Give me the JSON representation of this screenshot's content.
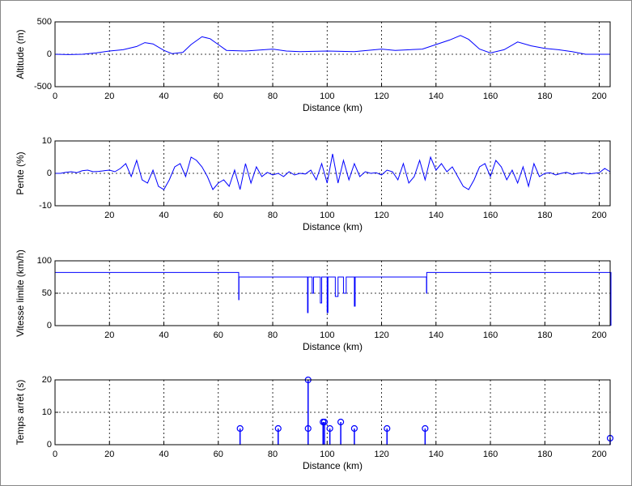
{
  "chart_data": [
    {
      "type": "line",
      "xlabel": "Distance (km)",
      "ylabel": "Altitude (m)",
      "xlim": [
        0,
        204
      ],
      "ylim": [
        -500,
        500
      ],
      "xticks": [
        0,
        20,
        40,
        60,
        80,
        100,
        120,
        140,
        160,
        180,
        200
      ],
      "yticks": [
        -500,
        0,
        500
      ],
      "grid": true,
      "x": [
        0,
        5,
        10,
        15,
        20,
        25,
        30,
        33,
        36,
        40,
        43,
        47,
        50,
        54,
        57,
        60,
        63,
        70,
        80,
        85,
        90,
        100,
        110,
        120,
        125,
        135,
        140,
        145,
        149,
        152,
        156,
        160,
        165,
        170,
        175,
        180,
        185,
        190,
        195,
        204
      ],
      "series": [
        {
          "color": "#0000ff",
          "values": [
            0,
            -5,
            0,
            20,
            50,
            70,
            120,
            180,
            160,
            60,
            10,
            30,
            150,
            270,
            240,
            150,
            60,
            50,
            80,
            50,
            40,
            50,
            40,
            80,
            60,
            80,
            150,
            220,
            290,
            230,
            80,
            20,
            70,
            190,
            130,
            90,
            70,
            40,
            0,
            0
          ]
        }
      ]
    },
    {
      "type": "line",
      "xlabel": "Distance (km)",
      "ylabel": "Pente (%)",
      "xlim": [
        0,
        204
      ],
      "ylim": [
        -10,
        10
      ],
      "xticks": [
        20,
        40,
        60,
        80,
        100,
        120,
        140,
        160,
        180,
        200
      ],
      "yticks": [
        -10,
        0,
        10
      ],
      "grid": true,
      "x": [
        0,
        2,
        4,
        6,
        8,
        10,
        12,
        14,
        16,
        18,
        20,
        22,
        24,
        26,
        28,
        30,
        32,
        34,
        36,
        38,
        40,
        42,
        44,
        46,
        48,
        50,
        52,
        54,
        56,
        58,
        60,
        62,
        64,
        66,
        68,
        70,
        72,
        74,
        76,
        78,
        80,
        82,
        84,
        86,
        88,
        90,
        92,
        94,
        96,
        98,
        100,
        102,
        104,
        106,
        108,
        110,
        112,
        114,
        116,
        118,
        120,
        122,
        124,
        126,
        128,
        130,
        132,
        134,
        136,
        138,
        140,
        142,
        144,
        146,
        148,
        150,
        152,
        154,
        156,
        158,
        160,
        162,
        164,
        166,
        168,
        170,
        172,
        174,
        176,
        178,
        180,
        182,
        184,
        186,
        188,
        190,
        192,
        194,
        196,
        198,
        200,
        202,
        204
      ],
      "series": [
        {
          "color": "#0000ff",
          "values": [
            0,
            0,
            0.3,
            0.5,
            0.2,
            0.8,
            1,
            0.5,
            0.6,
            0.8,
            1,
            0.5,
            1.5,
            3,
            -1,
            4,
            -2,
            -3,
            1,
            -4,
            -5,
            -2,
            2,
            3,
            -1,
            5,
            4,
            2,
            -1,
            -5,
            -3,
            -2,
            -4,
            1,
            -5,
            3,
            -3,
            2,
            -1,
            0.3,
            -0.5,
            0,
            -1,
            0.5,
            -0.5,
            0,
            -0.2,
            1,
            -2,
            3,
            -3,
            6,
            -3,
            4,
            -2,
            3,
            -1,
            0.5,
            0,
            0.2,
            -0.5,
            1,
            0.5,
            -2,
            3,
            -3,
            -1,
            4,
            -2,
            5,
            1,
            3,
            0.5,
            2,
            -1,
            -4,
            -5,
            -2,
            2,
            3,
            -1,
            4,
            2,
            -2,
            1,
            -3,
            2,
            -4,
            3,
            -1,
            0,
            0.2,
            -0.5,
            0,
            0.3,
            -0.3,
            0,
            0.2,
            -0.2,
            0,
            0.2,
            1.5,
            0.5
          ]
        }
      ]
    },
    {
      "type": "line",
      "xlabel": "Distance (km)",
      "ylabel": "Vitesse limite (km/h)",
      "xlim": [
        0,
        204
      ],
      "ylim": [
        0,
        100
      ],
      "xticks": [
        20,
        40,
        60,
        80,
        100,
        120,
        140,
        160,
        180,
        200
      ],
      "yticks": [
        0,
        50,
        100
      ],
      "grid": true,
      "x": [
        0,
        67.5,
        67.5,
        67.6,
        67.6,
        92.8,
        92.8,
        93,
        93,
        94.5,
        94.5,
        95,
        95,
        97.5,
        97.5,
        98,
        98,
        100,
        100,
        100.3,
        100.3,
        103,
        103,
        104,
        104,
        106,
        106,
        107,
        107,
        110,
        110,
        110.3,
        110.3,
        136.5,
        136.5,
        136.6,
        136.6,
        204.3,
        204.3
      ],
      "series": [
        {
          "color": "#0000ff",
          "values": [
            82,
            82,
            40,
            40,
            75,
            75,
            20,
            20,
            75,
            75,
            50,
            50,
            75,
            75,
            35,
            35,
            75,
            75,
            20,
            20,
            75,
            75,
            45,
            45,
            75,
            75,
            50,
            50,
            75,
            75,
            30,
            30,
            75,
            75,
            50,
            50,
            82,
            82,
            0
          ]
        }
      ]
    },
    {
      "type": "stem",
      "xlabel": "Distance (km)",
      "ylabel": "Temps arrêt (s)",
      "xlim": [
        0,
        204
      ],
      "ylim": [
        0,
        20
      ],
      "xticks": [
        0,
        20,
        40,
        60,
        80,
        100,
        120,
        140,
        160,
        180,
        200
      ],
      "yticks": [
        0,
        10,
        20
      ],
      "grid": true,
      "x": [
        68,
        82,
        93,
        93,
        98.5,
        99,
        101,
        105,
        110,
        122,
        136,
        204
      ],
      "series": [
        {
          "color": "#0000ff",
          "values": [
            5,
            5,
            5,
            20,
            7,
            7,
            5,
            7,
            5,
            5,
            5,
            2
          ]
        }
      ]
    }
  ]
}
